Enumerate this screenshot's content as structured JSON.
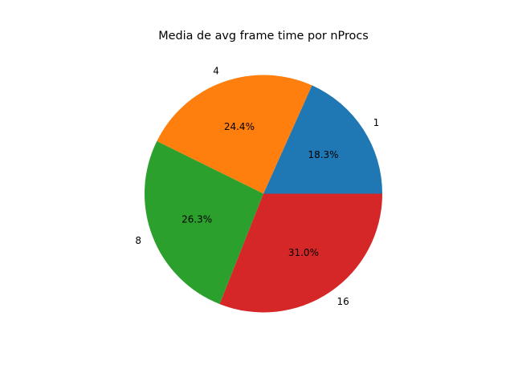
{
  "chart_data": {
    "type": "pie",
    "title": "Media de avg frame time por nProcs",
    "categories": [
      "1",
      "4",
      "8",
      "16"
    ],
    "values": [
      18.3,
      24.4,
      26.3,
      31.0
    ],
    "percent_labels": [
      "18.3%",
      "24.4%",
      "26.3%",
      "31.0%"
    ],
    "colors": [
      "#1f77b4",
      "#ff7f0e",
      "#2ca02c",
      "#d62728"
    ],
    "start_angle_deg": 0,
    "direction": "counterclockwise",
    "legend": "none"
  }
}
